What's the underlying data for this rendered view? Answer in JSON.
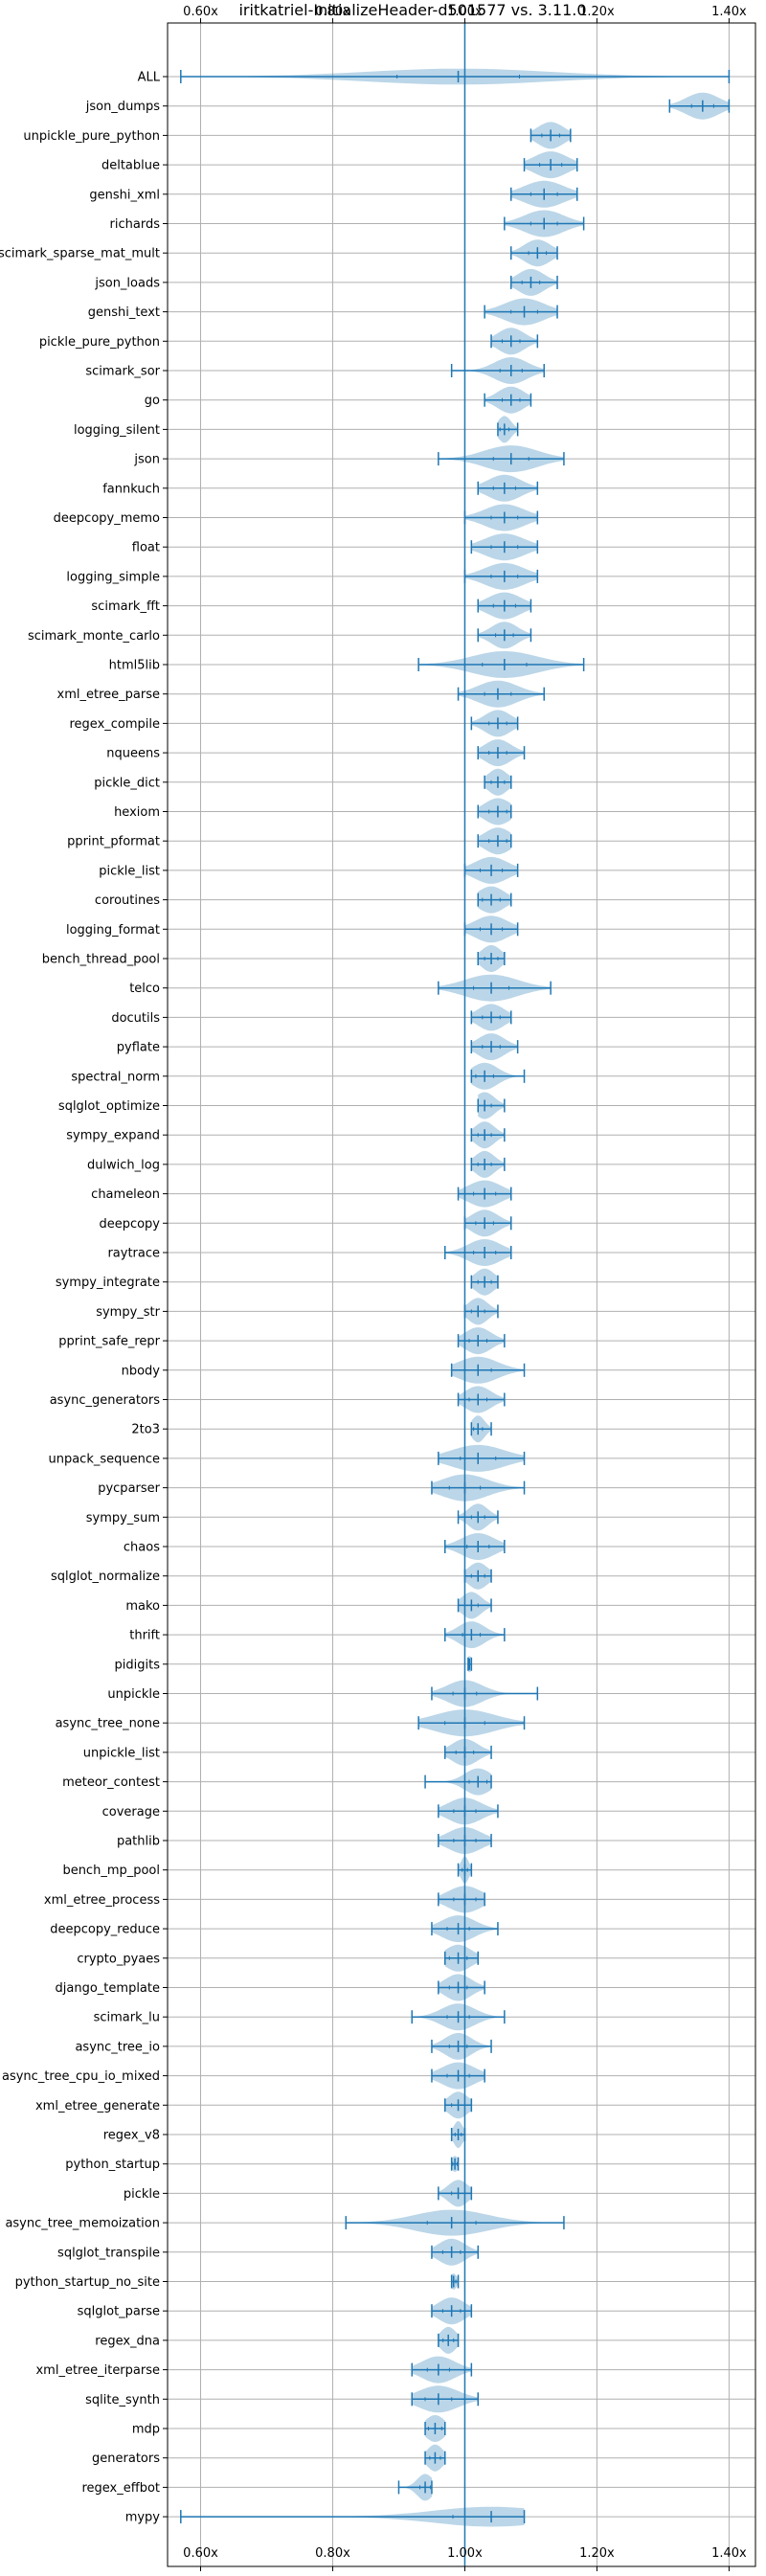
{
  "chart_data": {
    "type": "violin",
    "title": "iritkatriel-InitializeHeader-d501577 vs. 3.11.0",
    "xlabel": "",
    "ylabel": "",
    "xlim": [
      0.55,
      1.44
    ],
    "xticks": [
      0.6,
      0.8,
      1.0,
      1.2,
      1.4
    ],
    "xtick_labels": [
      "0.60x",
      "0.80x",
      "1.00x",
      "1.20x",
      "1.40x"
    ],
    "reference_line": 1.0,
    "grid": true,
    "colors": {
      "line": "#1f77b4",
      "fill": "#1f77b4",
      "grid": "#b0b0b0"
    },
    "benchmarks": [
      {
        "name": "ALL",
        "min": 0.57,
        "max": 1.4,
        "median": 0.99,
        "spread": 0.015
      },
      {
        "name": "json_dumps",
        "min": 1.31,
        "max": 1.4,
        "median": 1.36,
        "spread": 0.025
      },
      {
        "name": "unpickle_pure_python",
        "min": 1.1,
        "max": 1.16,
        "median": 1.13,
        "spread": 0.02
      },
      {
        "name": "deltablue",
        "min": 1.09,
        "max": 1.17,
        "median": 1.13,
        "spread": 0.025
      },
      {
        "name": "genshi_xml",
        "min": 1.07,
        "max": 1.17,
        "median": 1.12,
        "spread": 0.03
      },
      {
        "name": "richards",
        "min": 1.06,
        "max": 1.18,
        "median": 1.12,
        "spread": 0.03
      },
      {
        "name": "scimark_sparse_mat_mult",
        "min": 1.07,
        "max": 1.14,
        "median": 1.11,
        "spread": 0.02
      },
      {
        "name": "json_loads",
        "min": 1.07,
        "max": 1.14,
        "median": 1.1,
        "spread": 0.02
      },
      {
        "name": "genshi_text",
        "min": 1.03,
        "max": 1.14,
        "median": 1.09,
        "spread": 0.03
      },
      {
        "name": "pickle_pure_python",
        "min": 1.04,
        "max": 1.11,
        "median": 1.07,
        "spread": 0.02
      },
      {
        "name": "scimark_sor",
        "min": 0.98,
        "max": 1.12,
        "median": 1.07,
        "spread": 0.025
      },
      {
        "name": "go",
        "min": 1.03,
        "max": 1.1,
        "median": 1.07,
        "spread": 0.02
      },
      {
        "name": "logging_silent",
        "min": 1.05,
        "max": 1.08,
        "median": 1.06,
        "spread": 0.01
      },
      {
        "name": "json",
        "min": 0.96,
        "max": 1.15,
        "median": 1.07,
        "spread": 0.04
      },
      {
        "name": "fannkuch",
        "min": 1.02,
        "max": 1.11,
        "median": 1.06,
        "spread": 0.025
      },
      {
        "name": "deepcopy_memo",
        "min": 1.0,
        "max": 1.11,
        "median": 1.06,
        "spread": 0.03
      },
      {
        "name": "float",
        "min": 1.01,
        "max": 1.11,
        "median": 1.06,
        "spread": 0.03
      },
      {
        "name": "logging_simple",
        "min": 1.0,
        "max": 1.11,
        "median": 1.06,
        "spread": 0.03
      },
      {
        "name": "scimark_fft",
        "min": 1.02,
        "max": 1.1,
        "median": 1.06,
        "spread": 0.025
      },
      {
        "name": "scimark_monte_carlo",
        "min": 1.02,
        "max": 1.1,
        "median": 1.06,
        "spread": 0.02
      },
      {
        "name": "html5lib",
        "min": 0.93,
        "max": 1.18,
        "median": 1.06,
        "spread": 0.05
      },
      {
        "name": "xml_etree_parse",
        "min": 0.99,
        "max": 1.12,
        "median": 1.05,
        "spread": 0.03
      },
      {
        "name": "regex_compile",
        "min": 1.01,
        "max": 1.08,
        "median": 1.05,
        "spread": 0.02
      },
      {
        "name": "nqueens",
        "min": 1.02,
        "max": 1.09,
        "median": 1.05,
        "spread": 0.02
      },
      {
        "name": "pickle_dict",
        "min": 1.03,
        "max": 1.07,
        "median": 1.05,
        "spread": 0.015
      },
      {
        "name": "hexiom",
        "min": 1.02,
        "max": 1.07,
        "median": 1.05,
        "spread": 0.02
      },
      {
        "name": "pprint_pformat",
        "min": 1.02,
        "max": 1.07,
        "median": 1.05,
        "spread": 0.02
      },
      {
        "name": "pickle_list",
        "min": 1.0,
        "max": 1.08,
        "median": 1.04,
        "spread": 0.025
      },
      {
        "name": "coroutines",
        "min": 1.02,
        "max": 1.07,
        "median": 1.04,
        "spread": 0.02
      },
      {
        "name": "logging_format",
        "min": 1.0,
        "max": 1.08,
        "median": 1.04,
        "spread": 0.025
      },
      {
        "name": "bench_thread_pool",
        "min": 1.02,
        "max": 1.06,
        "median": 1.04,
        "spread": 0.015
      },
      {
        "name": "telco",
        "min": 0.96,
        "max": 1.13,
        "median": 1.04,
        "spread": 0.04
      },
      {
        "name": "docutils",
        "min": 1.01,
        "max": 1.07,
        "median": 1.04,
        "spread": 0.02
      },
      {
        "name": "pyflate",
        "min": 1.01,
        "max": 1.08,
        "median": 1.04,
        "spread": 0.02
      },
      {
        "name": "spectral_norm",
        "min": 1.01,
        "max": 1.09,
        "median": 1.03,
        "spread": 0.02
      },
      {
        "name": "sqlglot_optimize",
        "min": 1.02,
        "max": 1.06,
        "median": 1.03,
        "spread": 0.015
      },
      {
        "name": "sympy_expand",
        "min": 1.01,
        "max": 1.06,
        "median": 1.03,
        "spread": 0.015
      },
      {
        "name": "dulwich_log",
        "min": 1.01,
        "max": 1.06,
        "median": 1.03,
        "spread": 0.015
      },
      {
        "name": "chameleon",
        "min": 0.99,
        "max": 1.07,
        "median": 1.03,
        "spread": 0.025
      },
      {
        "name": "deepcopy",
        "min": 1.0,
        "max": 1.07,
        "median": 1.03,
        "spread": 0.02
      },
      {
        "name": "raytrace",
        "min": 0.97,
        "max": 1.07,
        "median": 1.03,
        "spread": 0.025
      },
      {
        "name": "sympy_integrate",
        "min": 1.01,
        "max": 1.05,
        "median": 1.03,
        "spread": 0.015
      },
      {
        "name": "sympy_str",
        "min": 1.0,
        "max": 1.05,
        "median": 1.02,
        "spread": 0.015
      },
      {
        "name": "pprint_safe_repr",
        "min": 0.99,
        "max": 1.06,
        "median": 1.02,
        "spread": 0.02
      },
      {
        "name": "nbody",
        "min": 0.98,
        "max": 1.09,
        "median": 1.02,
        "spread": 0.03
      },
      {
        "name": "async_generators",
        "min": 0.99,
        "max": 1.06,
        "median": 1.02,
        "spread": 0.02
      },
      {
        "name": "2to3",
        "min": 1.01,
        "max": 1.04,
        "median": 1.02,
        "spread": 0.01
      },
      {
        "name": "unpack_sequence",
        "min": 0.96,
        "max": 1.09,
        "median": 1.02,
        "spread": 0.04
      },
      {
        "name": "pycparser",
        "min": 0.95,
        "max": 1.09,
        "median": 1.0,
        "spread": 0.035
      },
      {
        "name": "sympy_sum",
        "min": 0.99,
        "max": 1.05,
        "median": 1.02,
        "spread": 0.015
      },
      {
        "name": "chaos",
        "min": 0.97,
        "max": 1.06,
        "median": 1.02,
        "spread": 0.025
      },
      {
        "name": "sqlglot_normalize",
        "min": 1.0,
        "max": 1.04,
        "median": 1.02,
        "spread": 0.015
      },
      {
        "name": "mako",
        "min": 0.99,
        "max": 1.04,
        "median": 1.01,
        "spread": 0.015
      },
      {
        "name": "thrift",
        "min": 0.97,
        "max": 1.06,
        "median": 1.01,
        "spread": 0.02
      },
      {
        "name": "pidigits",
        "min": 1.005,
        "max": 1.01,
        "median": 1.007,
        "spread": 0.005
      },
      {
        "name": "unpickle",
        "min": 0.95,
        "max": 1.11,
        "median": 1.0,
        "spread": 0.025
      },
      {
        "name": "async_tree_none",
        "min": 0.93,
        "max": 1.09,
        "median": 1.0,
        "spread": 0.045
      },
      {
        "name": "unpickle_list",
        "min": 0.97,
        "max": 1.04,
        "median": 1.0,
        "spread": 0.02
      },
      {
        "name": "meteor_contest",
        "min": 0.94,
        "max": 1.04,
        "median": 1.02,
        "spread": 0.02
      },
      {
        "name": "coverage",
        "min": 0.96,
        "max": 1.05,
        "median": 1.0,
        "spread": 0.025
      },
      {
        "name": "pathlib",
        "min": 0.96,
        "max": 1.04,
        "median": 1.0,
        "spread": 0.025
      },
      {
        "name": "bench_mp_pool",
        "min": 0.99,
        "max": 1.01,
        "median": 1.0,
        "spread": 0.006
      },
      {
        "name": "xml_etree_process",
        "min": 0.96,
        "max": 1.03,
        "median": 1.0,
        "spread": 0.025
      },
      {
        "name": "deepcopy_reduce",
        "min": 0.95,
        "max": 1.05,
        "median": 0.99,
        "spread": 0.025
      },
      {
        "name": "crypto_pyaes",
        "min": 0.97,
        "max": 1.02,
        "median": 0.99,
        "spread": 0.02
      },
      {
        "name": "django_template",
        "min": 0.96,
        "max": 1.03,
        "median": 0.99,
        "spread": 0.02
      },
      {
        "name": "scimark_lu",
        "min": 0.92,
        "max": 1.06,
        "median": 0.99,
        "spread": 0.025
      },
      {
        "name": "async_tree_io",
        "min": 0.95,
        "max": 1.04,
        "median": 0.99,
        "spread": 0.02
      },
      {
        "name": "async_tree_cpu_io_mixed",
        "min": 0.95,
        "max": 1.03,
        "median": 0.99,
        "spread": 0.025
      },
      {
        "name": "xml_etree_generate",
        "min": 0.97,
        "max": 1.01,
        "median": 0.99,
        "spread": 0.015
      },
      {
        "name": "regex_v8",
        "min": 0.98,
        "max": 1.0,
        "median": 0.99,
        "spread": 0.007
      },
      {
        "name": "python_startup",
        "min": 0.98,
        "max": 0.99,
        "median": 0.985,
        "spread": 0.005
      },
      {
        "name": "pickle",
        "min": 0.96,
        "max": 1.01,
        "median": 0.99,
        "spread": 0.015
      },
      {
        "name": "async_tree_memoization",
        "min": 0.82,
        "max": 1.15,
        "median": 0.98,
        "spread": 0.05
      },
      {
        "name": "sqlglot_transpile",
        "min": 0.95,
        "max": 1.02,
        "median": 0.98,
        "spread": 0.02
      },
      {
        "name": "python_startup_no_site",
        "min": 0.98,
        "max": 0.99,
        "median": 0.983,
        "spread": 0.005
      },
      {
        "name": "sqlglot_parse",
        "min": 0.95,
        "max": 1.01,
        "median": 0.98,
        "spread": 0.02
      },
      {
        "name": "regex_dna",
        "min": 0.96,
        "max": 0.99,
        "median": 0.975,
        "spread": 0.012
      },
      {
        "name": "xml_etree_iterparse",
        "min": 0.92,
        "max": 1.01,
        "median": 0.96,
        "spread": 0.025
      },
      {
        "name": "sqlite_synth",
        "min": 0.92,
        "max": 1.02,
        "median": 0.96,
        "spread": 0.03
      },
      {
        "name": "mdp",
        "min": 0.94,
        "max": 0.97,
        "median": 0.955,
        "spread": 0.015
      },
      {
        "name": "generators",
        "min": 0.94,
        "max": 0.97,
        "median": 0.955,
        "spread": 0.012
      },
      {
        "name": "regex_effbot",
        "min": 0.9,
        "max": 0.95,
        "median": 0.94,
        "spread": 0.012
      },
      {
        "name": "mypy",
        "min": 0.57,
        "max": 1.09,
        "median": 1.04,
        "spread": 0.04
      }
    ]
  }
}
